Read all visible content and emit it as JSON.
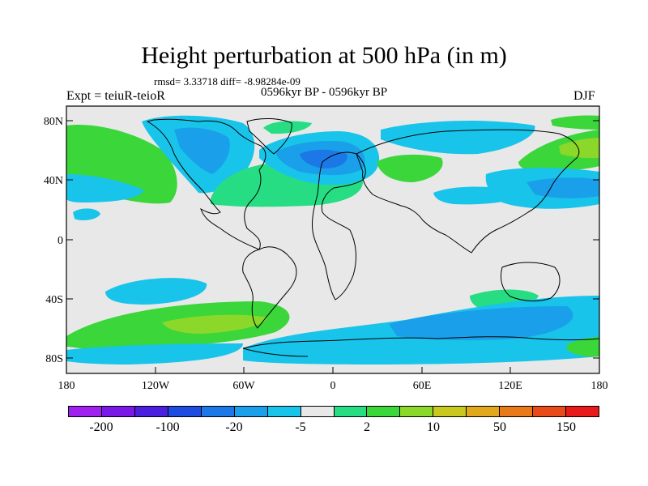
{
  "header": {
    "title": "Height perturbation at 500 hPa (in m)",
    "rmsd": "rmsd= 3.33718  diff= -8.98284e-09",
    "left_label": "Expt = teiuR-teioR",
    "center_label": "0596kyr BP - 0596kyr BP",
    "right_label": "DJF"
  },
  "axes": {
    "lat_ticks": [
      "80N",
      "40N",
      "0",
      "40S",
      "80S"
    ],
    "lon_ticks": [
      "180",
      "120W",
      "60W",
      "0",
      "60E",
      "120E",
      "180"
    ]
  },
  "colorbar": {
    "colors": [
      "#a020f0",
      "#7a18e8",
      "#4b1fe0",
      "#1e4ce0",
      "#1c78e6",
      "#1aa0ea",
      "#19c4ea",
      "#e8e8e8",
      "#26dd84",
      "#3ad63a",
      "#8cd82a",
      "#c8c81e",
      "#e0a81a",
      "#e87a1a",
      "#e84a1a",
      "#e81a1a"
    ],
    "labels": [
      "-200",
      "-100",
      "-20",
      "-5",
      "2",
      "10",
      "50",
      "150"
    ]
  },
  "fill_colors": {
    "land_bg": "#e8e8e8",
    "cyan": "#19c4ea",
    "blue_light": "#1aa0ea",
    "blue": "#1c78e6",
    "green_light": "#26dd84",
    "green": "#3ad63a",
    "yellow_green": "#8cd82a"
  }
}
